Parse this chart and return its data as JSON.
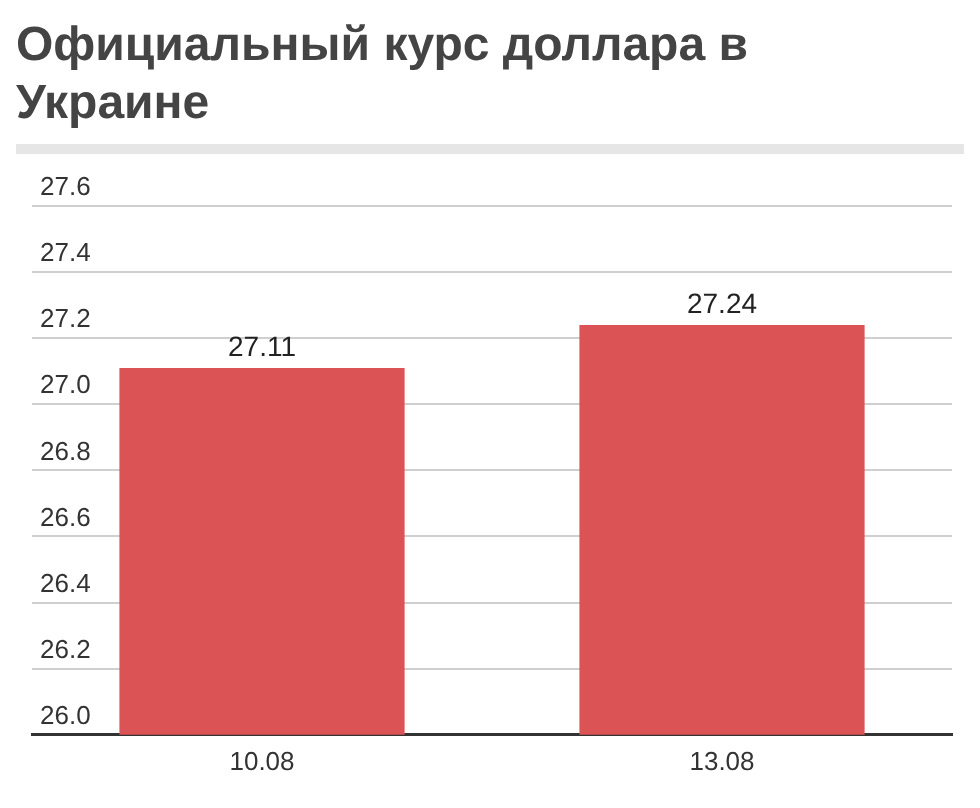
{
  "chart_data": {
    "type": "bar",
    "title": "Официальный курс доллара в Украине",
    "categories": [
      "10.08",
      "13.08"
    ],
    "values": [
      27.11,
      27.24
    ],
    "color": "#dc5356",
    "ylim": [
      26.0,
      27.6
    ],
    "yticks": [
      {
        "value": 26.0,
        "label": "26.0"
      },
      {
        "value": 26.2,
        "label": "26.2"
      },
      {
        "value": 26.4,
        "label": "26.4"
      },
      {
        "value": 26.6,
        "label": "26.6"
      },
      {
        "value": 26.8,
        "label": "26.8"
      },
      {
        "value": 27.0,
        "label": "27.0"
      },
      {
        "value": 27.2,
        "label": "27.2"
      },
      {
        "value": 27.4,
        "label": "27.4"
      },
      {
        "value": 27.6,
        "label": "27.6"
      }
    ],
    "grid": "y",
    "data_labels": true
  }
}
